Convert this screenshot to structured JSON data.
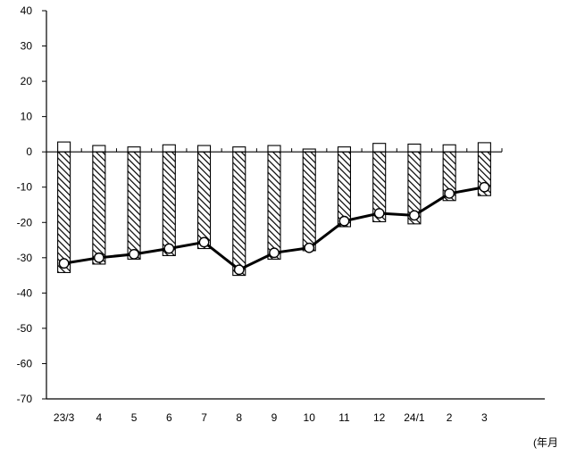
{
  "chart_data": {
    "type": "bar",
    "categories": [
      "23/3",
      "4",
      "5",
      "6",
      "7",
      "8",
      "9",
      "10",
      "11",
      "12",
      "24/1",
      "2",
      "3"
    ],
    "series": [
      {
        "style": "white-bar",
        "values": [
          2.8,
          1.8,
          1.4,
          2.0,
          1.8,
          1.4,
          1.8,
          0.8,
          1.4,
          2.4,
          2.2,
          2.0,
          2.6
        ]
      },
      {
        "style": "hatched-bar",
        "values": [
          -34.2,
          -31.8,
          -30.4,
          -29.4,
          -27.4,
          -35.0,
          -30.4,
          -28.0,
          -21.2,
          -19.8,
          -20.4,
          -13.8,
          -12.4
        ]
      },
      {
        "style": "line-with-markers",
        "type": "line",
        "values": [
          -31.6,
          -30.0,
          -29.0,
          -27.4,
          -25.6,
          -33.4,
          -28.6,
          -27.2,
          -19.6,
          -17.4,
          -18.0,
          -11.8,
          -10.0
        ]
      }
    ],
    "ylim": [
      -70,
      40
    ],
    "yticks": [
      40,
      30,
      20,
      10,
      0,
      -10,
      -20,
      -30,
      -40,
      -50,
      -60,
      -70
    ],
    "unit_label": "(年月",
    "grid": false,
    "colors": {
      "white_bar_fill": "#ffffff",
      "bar_stroke": "#000000",
      "hatch": "#000000",
      "line": "#000000",
      "marker_fill": "#ffffff"
    }
  }
}
